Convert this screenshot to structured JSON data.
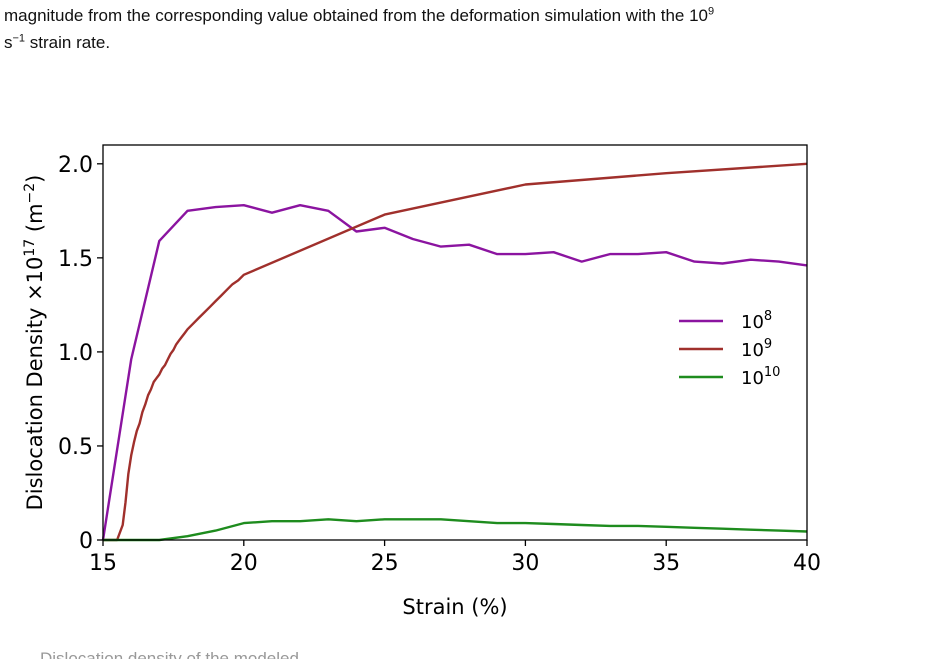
{
  "paragraph": {
    "line1_pre": "magnitude from the corresponding value obtained from the deformation simulation with the 10",
    "line1_sup": "9",
    "line2_unit_base": "s",
    "line2_unit_sup": "−1",
    "line2_rest": " strain rate."
  },
  "caption": "Dislocation density of the modeled...",
  "chart_data": {
    "type": "line",
    "xlabel": "Strain (%)",
    "ylabel_pre": "Dislocation Density ×10",
    "ylabel_sup": "17",
    "ylabel_post": " (m",
    "ylabel_unit_sup": "−2",
    "ylabel_close": ")",
    "xlim": [
      15,
      40
    ],
    "ylim": [
      0,
      2.1
    ],
    "xticks": [
      "15",
      "20",
      "25",
      "30",
      "35",
      "40"
    ],
    "yticks": [
      "0",
      "0.5",
      "1.0",
      "1.5",
      "2.0"
    ],
    "legend_position": "center-right",
    "series": [
      {
        "name_base": "10",
        "name_sup": "8",
        "color": "#8b14a0",
        "x": [
          15.0,
          16.0,
          17.0,
          18.0,
          19.0,
          20.0,
          21.0,
          22.0,
          23.0,
          24.0,
          25.0,
          26.0,
          27.0,
          28.0,
          29.0,
          30.0,
          31.0,
          32.0,
          33.0,
          34.0,
          35.0,
          36.0,
          37.0,
          38.0,
          39.0,
          40.0
        ],
        "y": [
          0.0,
          0.96,
          1.59,
          1.75,
          1.77,
          1.78,
          1.74,
          1.78,
          1.75,
          1.64,
          1.66,
          1.6,
          1.56,
          1.57,
          1.52,
          1.52,
          1.53,
          1.48,
          1.52,
          1.52,
          1.53,
          1.48,
          1.47,
          1.49,
          1.48,
          1.46
        ]
      },
      {
        "name_base": "10",
        "name_sup": "9",
        "color": "#a0302c",
        "x": [
          15.0,
          15.5,
          15.7,
          15.8,
          15.9,
          16.0,
          16.1,
          16.2,
          16.3,
          16.4,
          16.5,
          16.6,
          16.7,
          16.8,
          16.9,
          17.0,
          17.1,
          17.2,
          17.3,
          17.4,
          17.5,
          17.6,
          17.7,
          17.8,
          17.9,
          18.0,
          18.2,
          18.4,
          18.6,
          18.8,
          19.0,
          19.2,
          19.4,
          19.6,
          19.8,
          20.0,
          25.0,
          30.0,
          35.0,
          40.0
        ],
        "y": [
          0.0,
          0.0,
          0.08,
          0.2,
          0.35,
          0.45,
          0.52,
          0.58,
          0.62,
          0.68,
          0.72,
          0.77,
          0.8,
          0.84,
          0.86,
          0.88,
          0.91,
          0.93,
          0.96,
          0.99,
          1.01,
          1.04,
          1.06,
          1.08,
          1.1,
          1.12,
          1.15,
          1.18,
          1.21,
          1.24,
          1.27,
          1.3,
          1.33,
          1.36,
          1.38,
          1.41,
          1.73,
          1.89,
          1.95,
          2.0
        ]
      },
      {
        "name_base": "10",
        "name_sup": "10",
        "color": "#1e8c1e",
        "x": [
          15.0,
          16.0,
          17.0,
          18.0,
          19.0,
          20.0,
          21.0,
          22.0,
          23.0,
          24.0,
          25.0,
          26.0,
          27.0,
          28.0,
          29.0,
          30.0,
          31.0,
          32.0,
          33.0,
          34.0,
          35.0,
          36.0,
          37.0,
          38.0,
          39.0,
          40.0
        ],
        "y": [
          0.0,
          0.0,
          0.0,
          0.02,
          0.05,
          0.09,
          0.1,
          0.1,
          0.11,
          0.1,
          0.11,
          0.11,
          0.11,
          0.1,
          0.09,
          0.09,
          0.085,
          0.08,
          0.075,
          0.075,
          0.07,
          0.065,
          0.06,
          0.055,
          0.05,
          0.045
        ]
      }
    ]
  }
}
